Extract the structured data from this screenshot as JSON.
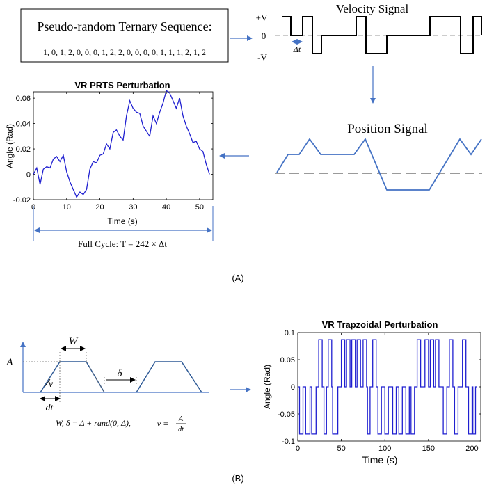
{
  "colors": {
    "accent": "#4472C4",
    "plot_line": "#1f1fd0",
    "dashed": "#9a9a9a",
    "black": "#000000"
  },
  "panel_a": {
    "sequence_box": {
      "title": "Pseudo-random Ternary Sequence:",
      "values": "1, 0, 1, 2, 0, 0, 0, 1, 2, 2, 0, 0, 0, 0, 1, 1, 1, 2, 1, 2"
    },
    "velocity_signal": {
      "title": "Velocity Signal",
      "label_plus_v": "+V",
      "label_zero": "0",
      "label_minus_v": "-V",
      "label_dt": "Δt"
    },
    "position_signal": {
      "title": "Position Signal"
    },
    "prts_plot": {
      "caption": "Full Cycle:  T = 242 × Δt"
    },
    "label": "(A)"
  },
  "panel_b": {
    "trapezoid_diagram": {
      "label_w": "W",
      "label_a": "A",
      "label_v": "v",
      "label_dt": "dt",
      "label_delta": "δ",
      "formula_w": "W, δ = Δ + rand(0, Δ),",
      "formula_v_lhs": "v =",
      "formula_v_num": "A",
      "formula_v_den": "dt"
    },
    "label": "(B)"
  },
  "chart_data": [
    {
      "type": "line",
      "title": "VR PRTS Perturbation",
      "xlabel": "Time (s)",
      "ylabel": "Angle (Rad)",
      "xlim": [
        0,
        54
      ],
      "ylim": [
        -0.02,
        0.065
      ],
      "xticks": [
        0,
        10,
        20,
        30,
        40,
        50
      ],
      "yticks": [
        -0.02,
        0,
        0.02,
        0.04,
        0.06
      ],
      "ytick_labels": [
        "-0.02",
        "0",
        "0.02",
        "0.04",
        "0.06"
      ],
      "series": [
        {
          "name": "angle",
          "x": [
            0,
            1,
            2,
            3,
            4,
            5,
            6,
            7,
            8,
            9,
            10,
            11,
            12,
            13,
            14,
            15,
            16,
            17,
            18,
            19,
            20,
            21,
            22,
            23,
            24,
            25,
            26,
            27,
            28,
            29,
            30,
            31,
            32,
            33,
            34,
            35,
            36,
            37,
            38,
            39,
            40,
            41,
            42,
            43,
            44,
            45,
            46,
            47,
            48,
            49,
            50,
            51,
            52,
            53
          ],
          "y": [
            0.0,
            0.005,
            -0.008,
            0.004,
            0.006,
            0.005,
            0.012,
            0.014,
            0.01,
            0.015,
            0.002,
            -0.006,
            -0.012,
            -0.018,
            -0.014,
            -0.016,
            -0.012,
            0.004,
            0.01,
            0.009,
            0.015,
            0.016,
            0.024,
            0.02,
            0.033,
            0.035,
            0.03,
            0.027,
            0.046,
            0.058,
            0.052,
            0.049,
            0.048,
            0.038,
            0.034,
            0.03,
            0.046,
            0.04,
            0.049,
            0.056,
            0.066,
            0.064,
            0.058,
            0.052,
            0.06,
            0.046,
            0.038,
            0.032,
            0.025,
            0.026,
            0.02,
            0.018,
            0.008,
            0.0
          ]
        }
      ]
    },
    {
      "type": "line",
      "title": "VR Trapzoidal Perturbation",
      "xlabel": "Time (s)",
      "ylabel": "Angle (Rad)",
      "xlim": [
        0,
        210
      ],
      "ylim": [
        -0.1,
        0.1
      ],
      "xticks": [
        0,
        50,
        100,
        150,
        200
      ],
      "yticks": [
        -0.1,
        -0.05,
        0,
        0.05,
        0.1
      ],
      "ytick_labels": [
        "-0.1",
        "-0.05",
        "0",
        "0.05",
        "0.1"
      ],
      "pulses": [
        {
          "start": 2,
          "end": 6,
          "value": -0.087
        },
        {
          "start": 9,
          "end": 14,
          "value": -0.087
        },
        {
          "start": 16,
          "end": 21,
          "value": -0.087
        },
        {
          "start": 24,
          "end": 28,
          "value": 0.087
        },
        {
          "start": 30,
          "end": 33,
          "value": -0.087
        },
        {
          "start": 35,
          "end": 39,
          "value": 0.087
        },
        {
          "start": 40,
          "end": 46,
          "value": -0.087
        },
        {
          "start": 50,
          "end": 54,
          "value": 0.087
        },
        {
          "start": 56,
          "end": 60,
          "value": 0.087
        },
        {
          "start": 62,
          "end": 66,
          "value": 0.087
        },
        {
          "start": 68,
          "end": 72,
          "value": 0.087
        },
        {
          "start": 75,
          "end": 79,
          "value": 0.087
        },
        {
          "start": 80,
          "end": 83,
          "value": -0.087
        },
        {
          "start": 86,
          "end": 90,
          "value": 0.087
        },
        {
          "start": 92,
          "end": 96,
          "value": -0.087
        },
        {
          "start": 100,
          "end": 104,
          "value": -0.087
        },
        {
          "start": 109,
          "end": 113,
          "value": -0.087
        },
        {
          "start": 116,
          "end": 120,
          "value": -0.087
        },
        {
          "start": 124,
          "end": 128,
          "value": -0.087
        },
        {
          "start": 130,
          "end": 134,
          "value": -0.087
        },
        {
          "start": 137,
          "end": 141,
          "value": 0.087
        },
        {
          "start": 146,
          "end": 150,
          "value": 0.087
        },
        {
          "start": 152,
          "end": 156,
          "value": 0.087
        },
        {
          "start": 158,
          "end": 162,
          "value": 0.087
        },
        {
          "start": 167,
          "end": 171,
          "value": -0.087
        },
        {
          "start": 174,
          "end": 178,
          "value": 0.087
        },
        {
          "start": 180,
          "end": 184,
          "value": -0.087
        },
        {
          "start": 189,
          "end": 193,
          "value": 0.087
        },
        {
          "start": 196,
          "end": 200,
          "value": -0.087
        },
        {
          "start": 201,
          "end": 204,
          "value": -0.087
        }
      ]
    }
  ]
}
